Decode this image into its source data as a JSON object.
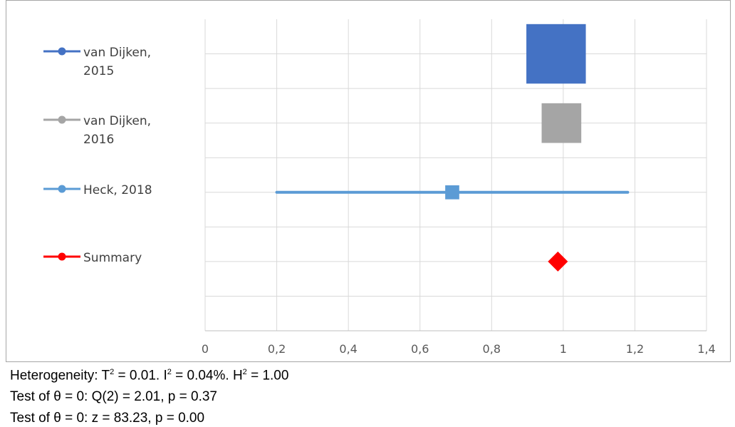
{
  "chart_data": {
    "type": "forest",
    "x_ticks": [
      "0",
      "0,2",
      "0,4",
      "0,6",
      "0,8",
      "1",
      "1,2",
      "1,4"
    ],
    "xlim": [
      0,
      1.4
    ],
    "grid": true,
    "legend_position": "left",
    "series": [
      {
        "name": "van Dijken,\n2015",
        "estimate": 0.98,
        "ci": [
          0.98,
          0.98
        ],
        "weight": 0.9,
        "color": "#4472c4",
        "marker": "square"
      },
      {
        "name": "van Dijken,\n2016",
        "estimate": 0.995,
        "ci": [
          0.96,
          1.04
        ],
        "weight": 0.4,
        "color": "#a5a5a5",
        "marker": "square"
      },
      {
        "name": "Heck, 2018",
        "estimate": 0.69,
        "ci": [
          0.2,
          1.18
        ],
        "weight": 0.05,
        "color": "#5b9bd5",
        "marker": "square"
      },
      {
        "name": "Summary",
        "estimate": 0.985,
        "ci": [
          0.985,
          0.985
        ],
        "weight": null,
        "color": "#ff0000",
        "marker": "diamond"
      }
    ]
  },
  "stats": {
    "line1": {
      "prefix": "Heterogeneity: T",
      "sup1": "2",
      "mid1": " = 0.01. I",
      "sup2": "2",
      "mid2": " = 0.04%. H",
      "sup3": "2",
      "suffix": " = 1.00"
    },
    "line2": "Test of θ = 0: Q(2) = 2.01, p = 0.37",
    "line3": "Test of θ = 0: z = 83.23, p = 0.00"
  }
}
